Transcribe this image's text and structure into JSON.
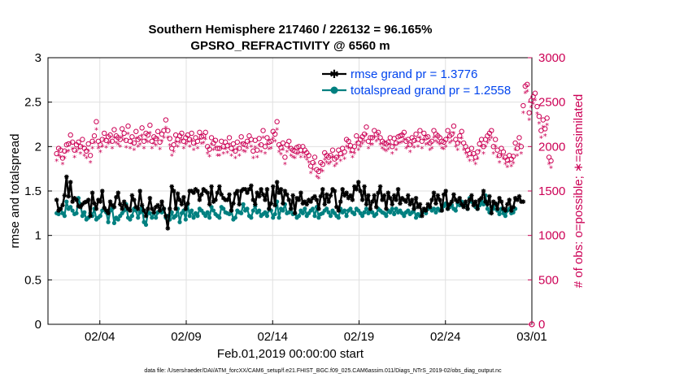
{
  "chart_data": {
    "type": "line",
    "title_line1": "Southern Hemisphere 217460 / 226132 = 96.165%",
    "title_line2": "GPSRO_REFRACTIVITY @ 6560 m",
    "xlabel": "Feb.01,2019 00:00:00 start",
    "ylabel_left": "rmse and totalspread",
    "ylabel_right": "# of obs: o=possible; ∗=assimilated",
    "footnote": "data file: /Users/raeder/DAI/ATM_forcXX/CAM6_setup/f.e21.FHIST_BGC.f09_025.CAM6assim.011/Diags_NTrS_2019-02/obs_diag_output.nc",
    "xlim": [
      0.5,
      28.5
    ],
    "ylim_left": [
      0,
      3
    ],
    "ylim_right": [
      0,
      3000
    ],
    "x_ticks": [
      3.5,
      8.5,
      13.5,
      18.5,
      23.5,
      28.5
    ],
    "x_tick_labels": [
      "02/04",
      "02/09",
      "02/14",
      "02/19",
      "02/24",
      "03/01"
    ],
    "y_left_ticks": [
      0,
      0.5,
      1,
      1.5,
      2,
      2.5,
      3
    ],
    "y_left_tick_labels": [
      "0",
      "0.5",
      "1",
      "1.5",
      "2",
      "2.5",
      "3"
    ],
    "y_right_ticks": [
      0,
      500,
      1000,
      1500,
      2000,
      2500,
      3000
    ],
    "y_right_tick_labels": [
      "0",
      "500",
      "1000",
      "1500",
      "2000",
      "2500",
      "3000"
    ],
    "legend": [
      {
        "label": "rmse grand pr = 1.3776",
        "color": "#000000"
      },
      {
        "label": "totalspread grand pr = 1.2558",
        "color": "#008080"
      }
    ],
    "colors": {
      "rmse": "#000000",
      "spread": "#008080",
      "obs": "#cc0055",
      "legend_text": "#0044ee",
      "grid": "#e0e0e0"
    },
    "rmse": [
      1.4,
      1.28,
      1.3,
      1.34,
      1.45,
      1.66,
      1.44,
      1.6,
      1.38,
      1.42,
      1.4,
      1.33,
      1.32,
      1.35,
      1.37,
      1.38,
      1.4,
      1.22,
      1.48,
      1.36,
      1.3,
      1.4,
      1.38,
      1.5,
      1.31,
      1.28,
      1.25,
      1.38,
      1.34,
      1.32,
      1.43,
      1.48,
      1.35,
      1.3,
      1.38,
      1.33,
      1.3,
      1.28,
      1.45,
      1.4,
      1.32,
      1.3,
      1.5,
      1.34,
      1.28,
      1.22,
      1.3,
      1.42,
      1.3,
      1.26,
      1.32,
      1.34,
      1.28,
      1.38,
      1.3,
      1.22,
      1.08,
      1.3,
      1.55,
      1.5,
      1.3,
      1.47,
      1.4,
      1.35,
      1.43,
      1.3,
      1.36,
      1.5,
      1.5,
      1.48,
      1.52,
      1.5,
      1.4,
      1.46,
      1.52,
      1.5,
      1.48,
      1.35,
      1.55,
      1.38,
      1.4,
      1.48,
      1.55,
      1.46,
      1.42,
      1.4,
      1.4,
      1.46,
      1.28,
      1.36,
      1.47,
      1.5,
      1.35,
      1.5,
      1.52,
      1.52,
      1.48,
      1.52,
      1.56,
      1.4,
      1.35,
      1.48,
      1.44,
      1.52,
      1.46,
      1.4,
      1.52,
      1.3,
      1.36,
      1.55,
      1.34,
      1.6,
      1.48,
      1.52,
      1.36,
      1.5,
      1.46,
      1.4,
      1.3,
      1.45,
      1.25,
      1.42,
      1.4,
      1.48,
      1.36,
      1.38,
      1.35,
      1.4,
      1.38,
      1.42,
      1.44,
      1.4,
      1.3,
      1.44,
      1.52,
      1.35,
      1.46,
      1.38,
      1.45,
      1.52,
      1.5,
      1.32,
      1.28,
      1.38,
      1.52,
      1.45,
      1.48,
      1.42,
      1.45,
      1.4,
      1.55,
      1.52,
      1.6,
      1.5,
      1.4,
      1.55,
      1.35,
      1.45,
      1.3,
      1.38,
      1.45,
      1.32,
      1.48,
      1.55,
      1.4,
      1.45,
      1.3,
      1.48,
      1.42,
      1.35,
      1.45,
      1.4,
      1.52,
      1.36,
      1.42,
      1.4,
      1.38,
      1.45,
      1.35,
      1.4,
      1.3,
      1.42,
      1.32,
      1.35,
      1.22,
      1.3,
      1.28,
      1.35,
      1.32,
      1.4,
      1.48,
      1.36,
      1.45,
      1.4,
      1.28,
      1.46,
      1.5,
      1.3,
      1.35,
      1.38,
      1.46,
      1.4,
      1.38,
      1.42,
      1.35,
      1.32,
      1.38,
      1.3,
      1.4,
      1.45,
      1.34,
      1.38,
      1.3,
      1.4,
      1.42,
      1.5,
      1.38,
      1.35,
      1.44,
      1.25,
      1.38,
      1.36,
      1.3,
      1.42,
      1.38,
      1.3,
      1.28,
      1.35,
      1.4,
      1.28,
      1.32,
      1.42,
      1.4,
      1.44,
      1.38,
      1.38
    ],
    "spread": [
      1.25,
      1.24,
      1.3,
      1.25,
      1.22,
      1.38,
      1.3,
      1.32,
      1.28,
      1.24,
      1.25,
      1.42,
      1.35,
      1.22,
      1.26,
      1.18,
      1.2,
      1.25,
      1.22,
      1.3,
      1.18,
      1.2,
      1.22,
      1.28,
      1.3,
      1.26,
      1.15,
      1.28,
      1.3,
      1.14,
      1.2,
      1.18,
      1.22,
      1.25,
      1.28,
      1.35,
      1.2,
      1.18,
      1.22,
      1.3,
      1.28,
      1.2,
      1.26,
      1.32,
      1.15,
      1.12,
      1.26,
      1.25,
      1.2,
      1.25,
      1.2,
      1.26,
      1.28,
      1.26,
      1.3,
      1.2,
      1.22,
      1.18,
      1.26,
      1.2,
      1.22,
      1.3,
      1.15,
      1.25,
      1.28,
      1.18,
      1.35,
      1.22,
      1.28,
      1.2,
      1.25,
      1.22,
      1.3,
      1.28,
      1.25,
      1.22,
      1.26,
      1.2,
      1.32,
      1.28,
      1.24,
      1.22,
      1.2,
      1.32,
      1.3,
      1.26,
      1.25,
      1.24,
      1.28,
      1.18,
      1.2,
      1.28,
      1.26,
      1.25,
      1.35,
      1.28,
      1.3,
      1.22,
      1.2,
      1.28,
      1.33,
      1.26,
      1.28,
      1.22,
      1.24,
      1.26,
      1.22,
      1.3,
      1.28,
      1.2,
      1.24,
      1.38,
      1.2,
      1.3,
      1.28,
      1.35,
      1.25,
      1.26,
      1.3,
      1.24,
      1.25,
      1.2,
      1.22,
      1.28,
      1.25,
      1.3,
      1.22,
      1.25,
      1.28,
      1.3,
      1.22,
      1.32,
      1.2,
      1.24,
      1.25,
      1.28,
      1.3,
      1.26,
      1.22,
      1.28,
      1.25,
      1.22,
      1.2,
      1.3,
      1.26,
      1.28,
      1.22,
      1.28,
      1.3,
      1.26,
      1.24,
      1.3,
      1.28,
      1.25,
      1.22,
      1.26,
      1.3,
      1.25,
      1.28,
      1.26,
      1.22,
      1.24,
      1.3,
      1.28,
      1.26,
      1.25,
      1.22,
      1.28,
      1.26,
      1.3,
      1.24,
      1.3,
      1.26,
      1.28,
      1.25,
      1.22,
      1.26,
      1.28,
      1.24,
      1.26,
      1.3,
      1.2,
      1.24,
      1.22,
      1.26,
      1.28,
      1.25,
      1.3,
      1.32,
      1.28,
      1.3,
      1.26,
      1.3,
      1.28,
      1.3,
      1.33,
      1.36,
      1.3,
      1.32,
      1.34,
      1.3,
      1.28,
      1.36,
      1.34,
      1.38,
      1.36,
      1.34,
      1.3,
      1.42,
      1.38,
      1.36,
      1.32,
      1.3,
      1.34,
      1.38,
      1.35,
      1.45,
      1.3,
      1.26,
      1.32,
      1.3,
      1.36,
      1.28,
      1.24,
      1.3,
      1.25,
      1.22,
      1.28,
      1.3,
      1.25,
      1.26,
      1.3
    ],
    "obs_possible": [
      1920,
      1980,
      1960,
      1870,
      1950,
      2020,
      2030,
      2130,
      2050,
      1960,
      2020,
      2050,
      2000,
      2080,
      1980,
      1950,
      2030,
      1900,
      2060,
      2120,
      2280,
      2060,
      2020,
      2080,
      2150,
      2070,
      2110,
      2130,
      2060,
      2190,
      2120,
      2100,
      2080,
      2200,
      2150,
      2070,
      2230,
      2060,
      2110,
      2040,
      2170,
      2080,
      2100,
      2210,
      2060,
      2150,
      2130,
      2240,
      2060,
      2110,
      2090,
      2170,
      2050,
      2140,
      2180,
      2300,
      2180,
      2090,
      1980,
      2020,
      2130,
      2080,
      2120,
      2150,
      2060,
      2100,
      2130,
      2080,
      2150,
      2040,
      2100,
      2060,
      2160,
      2110,
      2120,
      2160,
      2000,
      1970,
      2100,
      2040,
      2070,
      1980,
      1980,
      2060,
      2000,
      2050,
      2010,
      2100,
      1980,
      2030,
      1950,
      2050,
      1980,
      2110,
      2030,
      2020,
      2060,
      2120,
      2080,
      1950,
      2070,
      1960,
      2090,
      2020,
      2180,
      2000,
      2100,
      2050,
      2060,
      2170,
      2140,
      2280,
      2020,
      1990,
      2040,
      1880,
      2020,
      2060,
      1980,
      1960,
      1950,
      1990,
      2000,
      1960,
      2000,
      1960,
      1930,
      1900,
      1780,
      1820,
      1880,
      1740,
      1720,
      1820,
      1800,
      1930,
      1900,
      1880,
      1900,
      1960,
      1860,
      1880,
      1960,
      1920,
      1980,
      1940,
      2080,
      2060,
      2010,
      1960,
      2000,
      2120,
      2040,
      2080,
      2110,
      2140,
      2220,
      2060,
      2100,
      2100,
      2180,
      2140,
      2160,
      2100,
      2060,
      2040,
      2030,
      2050,
      2100,
      2000,
      2090,
      2040,
      2110,
      2120,
      2130,
      2160,
      2060,
      2080,
      2020,
      2100,
      2070,
      2140,
      2080,
      2180,
      2060,
      2150,
      2100,
      2110,
      2040,
      2060,
      2180,
      2140,
      2120,
      2100,
      2060,
      2050,
      2080,
      2180,
      2120,
      2140,
      2230,
      2080,
      2040,
      2120,
      2170,
      2040,
      2000,
      1960,
      1920,
      1980,
      1920,
      1880,
      1940,
      2030,
      2080,
      2000,
      2080,
      2120,
      2150,
      2180,
      2000,
      2080,
      1960,
      1900,
      1980,
      1940,
      1880,
      1850,
      1900,
      1860,
      1890,
      2040,
      1980,
      2100,
      2000,
      2460,
      2680,
      2700,
      2380,
      2520,
      2560,
      2600,
      2450,
      2340,
      2180,
      2300,
      2200,
      2320,
      1880,
      1840
    ],
    "obs_assimilated": [
      1840,
      1900,
      1880,
      1800,
      1870,
      1940,
      1950,
      2040,
      1970,
      1880,
      1940,
      1970,
      1920,
      2000,
      1900,
      1870,
      1950,
      1820,
      1980,
      2040,
      2190,
      1980,
      1940,
      2000,
      2070,
      1990,
      2030,
      2050,
      1980,
      2100,
      2040,
      2020,
      2000,
      2110,
      2070,
      1990,
      2140,
      1980,
      2030,
      1960,
      2090,
      2000,
      2020,
      2120,
      1980,
      2070,
      2050,
      2150,
      1980,
      2030,
      2010,
      2090,
      1970,
      2060,
      2100,
      2210,
      2100,
      2010,
      1900,
      1940,
      2050,
      2000,
      2040,
      2070,
      1980,
      2020,
      2050,
      2000,
      2070,
      1960,
      2020,
      1980,
      2080,
      2030,
      2040,
      2080,
      1920,
      1890,
      2020,
      1960,
      1990,
      1900,
      1900,
      1980,
      1920,
      1970,
      1930,
      2020,
      1900,
      1950,
      1870,
      1970,
      1900,
      2030,
      1950,
      1940,
      1980,
      2040,
      2000,
      1870,
      1990,
      1880,
      2010,
      1940,
      2100,
      1920,
      2020,
      1970,
      1980,
      2090,
      2060,
      2190,
      1940,
      1910,
      1960,
      1800,
      1940,
      1980,
      1900,
      1880,
      1870,
      1910,
      1920,
      1880,
      1920,
      1880,
      1850,
      1820,
      1700,
      1740,
      1800,
      1660,
      1640,
      1740,
      1720,
      1850,
      1820,
      1800,
      1820,
      1880,
      1780,
      1800,
      1880,
      1840,
      1900,
      1860,
      2000,
      1980,
      1930,
      1880,
      1920,
      2040,
      1960,
      2000,
      2030,
      2060,
      2130,
      1980,
      2020,
      2020,
      2100,
      2060,
      2080,
      2020,
      1980,
      1960,
      1950,
      1970,
      2020,
      1920,
      2010,
      1960,
      2030,
      2040,
      2050,
      2080,
      1980,
      2000,
      1940,
      2020,
      1990,
      2060,
      2000,
      2100,
      1980,
      2070,
      2020,
      2030,
      1960,
      1980,
      2100,
      2060,
      2040,
      2020,
      1980,
      1970,
      2000,
      2100,
      2040,
      2060,
      2150,
      2000,
      1960,
      2040,
      2090,
      1960,
      1920,
      1880,
      1840,
      1900,
      1840,
      1800,
      1860,
      1950,
      2000,
      1920,
      2000,
      2040,
      2070,
      2100,
      1920,
      2000,
      1880,
      1820,
      1900,
      1860,
      1800,
      1770,
      1820,
      1780,
      1810,
      1960,
      1900,
      2020,
      1920,
      2380,
      2600,
      2620,
      2300,
      2440,
      2480,
      2520,
      2370,
      2260,
      2100,
      2220,
      2120,
      2240,
      1800,
      1760
    ]
  }
}
